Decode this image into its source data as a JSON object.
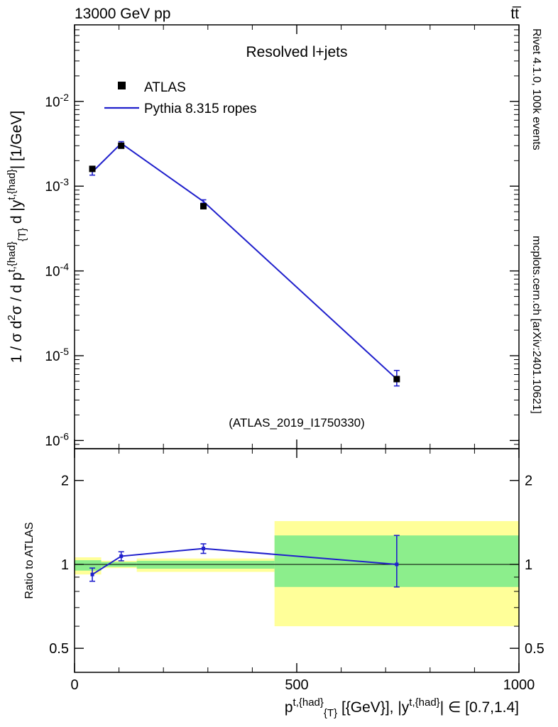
{
  "page": {
    "background": "#ffffff"
  },
  "chart_data": {
    "type": "line",
    "title": "Resolved l+jets",
    "header_left": "13000 GeV pp",
    "header_right": "tt̅",
    "watermark": "(ATLAS_2019_I1750330)",
    "side_text_top": "Rivet 4.1.0,  100k events",
    "side_text_bottom": "mcplots.cern.ch [arXiv:2401.10621]",
    "xlabel": "p^{t,{had}}_{{T}} [{GeV}], |y^{t,{had}}| ∈ [0.7,1.4]",
    "ylabel": "1 / σ d^{2}σ / d p^{t,{had}}_{{T}} d |y^{t,{had}}| [1/GeV]",
    "ratio_ylabel": "Ratio to ATLAS",
    "xlim": [
      0,
      1000
    ],
    "ylim_main": [
      8e-07,
      0.08
    ],
    "ylim_ratio": [
      0.41,
      2.6
    ],
    "x_major_ticks": [
      0,
      500,
      1000
    ],
    "x_minor_step": 100,
    "ratio_major_ticks": [
      0.5,
      1,
      2
    ],
    "ratio_minor_ticks": [
      0.6,
      0.7,
      0.8,
      0.9
    ],
    "x": [
      40,
      105,
      290,
      725
    ],
    "bin_edges": [
      0,
      60,
      140,
      450,
      1000
    ],
    "series": [
      {
        "name": "ATLAS",
        "type": "scatter",
        "marker": "square",
        "color": "#000000",
        "values": [
          0.0016,
          0.003,
          0.00058,
          5.3e-06
        ]
      },
      {
        "name": "Pythia 8.315 ropes",
        "type": "line",
        "color": "#2020cc",
        "values": [
          0.00147,
          0.0032,
          0.00066,
          5.3e-06
        ],
        "err_lo": [
          0.00012,
          0.00015,
          3e-05,
          9e-07
        ],
        "err_hi": [
          0.00012,
          0.00015,
          3e-05,
          1.4e-06
        ]
      }
    ],
    "ratio": {
      "values": [
        0.92,
        1.07,
        1.14,
        1.0
      ],
      "err_lo": [
        0.05,
        0.04,
        0.045,
        0.17
      ],
      "err_hi": [
        0.05,
        0.04,
        0.045,
        0.27
      ]
    },
    "bands": {
      "yellow_color": "#ffff99",
      "green_color": "#8cee8c",
      "yellow": [
        [
          0.92,
          1.06
        ],
        [
          0.97,
          1.03
        ],
        [
          0.94,
          1.05
        ],
        [
          0.6,
          1.43
        ]
      ],
      "green": [
        [
          0.95,
          1.035
        ],
        [
          0.98,
          1.02
        ],
        [
          0.965,
          1.03
        ],
        [
          0.83,
          1.27
        ]
      ]
    },
    "legend": [
      {
        "label": "ATLAS",
        "type": "marker",
        "color": "#000000"
      },
      {
        "label": "Pythia 8.315 ropes",
        "type": "line",
        "color": "#2020cc"
      }
    ],
    "colors": {
      "frame": "#000000",
      "accent_blue": "#2020cc",
      "watermark": "#b4b4b4",
      "side_text": "#808080"
    }
  }
}
